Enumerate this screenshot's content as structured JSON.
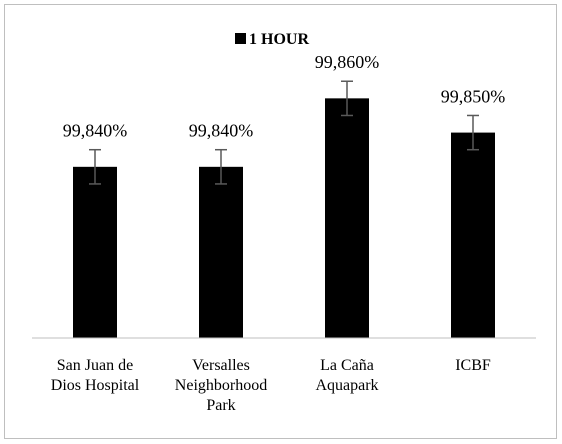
{
  "chart_data": {
    "type": "bar",
    "legend": {
      "label": "1 HOUR",
      "position": "top-center",
      "color": "#000000"
    },
    "categories": [
      [
        "San Juan de",
        "Dios Hospital"
      ],
      [
        "Versalles",
        "Neighborhood",
        "Park"
      ],
      [
        "La Caña",
        "Aquapark"
      ],
      [
        "ICBF"
      ]
    ],
    "series": [
      {
        "name": "1 HOUR",
        "values": [
          99.84,
          99.84,
          99.86,
          99.85
        ],
        "error": [
          0.005,
          0.005,
          0.005,
          0.005
        ],
        "labels": [
          "99,840%",
          "99,840%",
          "99,860%",
          "99,850%"
        ]
      }
    ],
    "ylim": [
      99.79,
      99.875
    ],
    "grid": false,
    "bar_color": "#000000",
    "error_bar_color": "#595959",
    "axis_color": "#bfbfbf"
  }
}
